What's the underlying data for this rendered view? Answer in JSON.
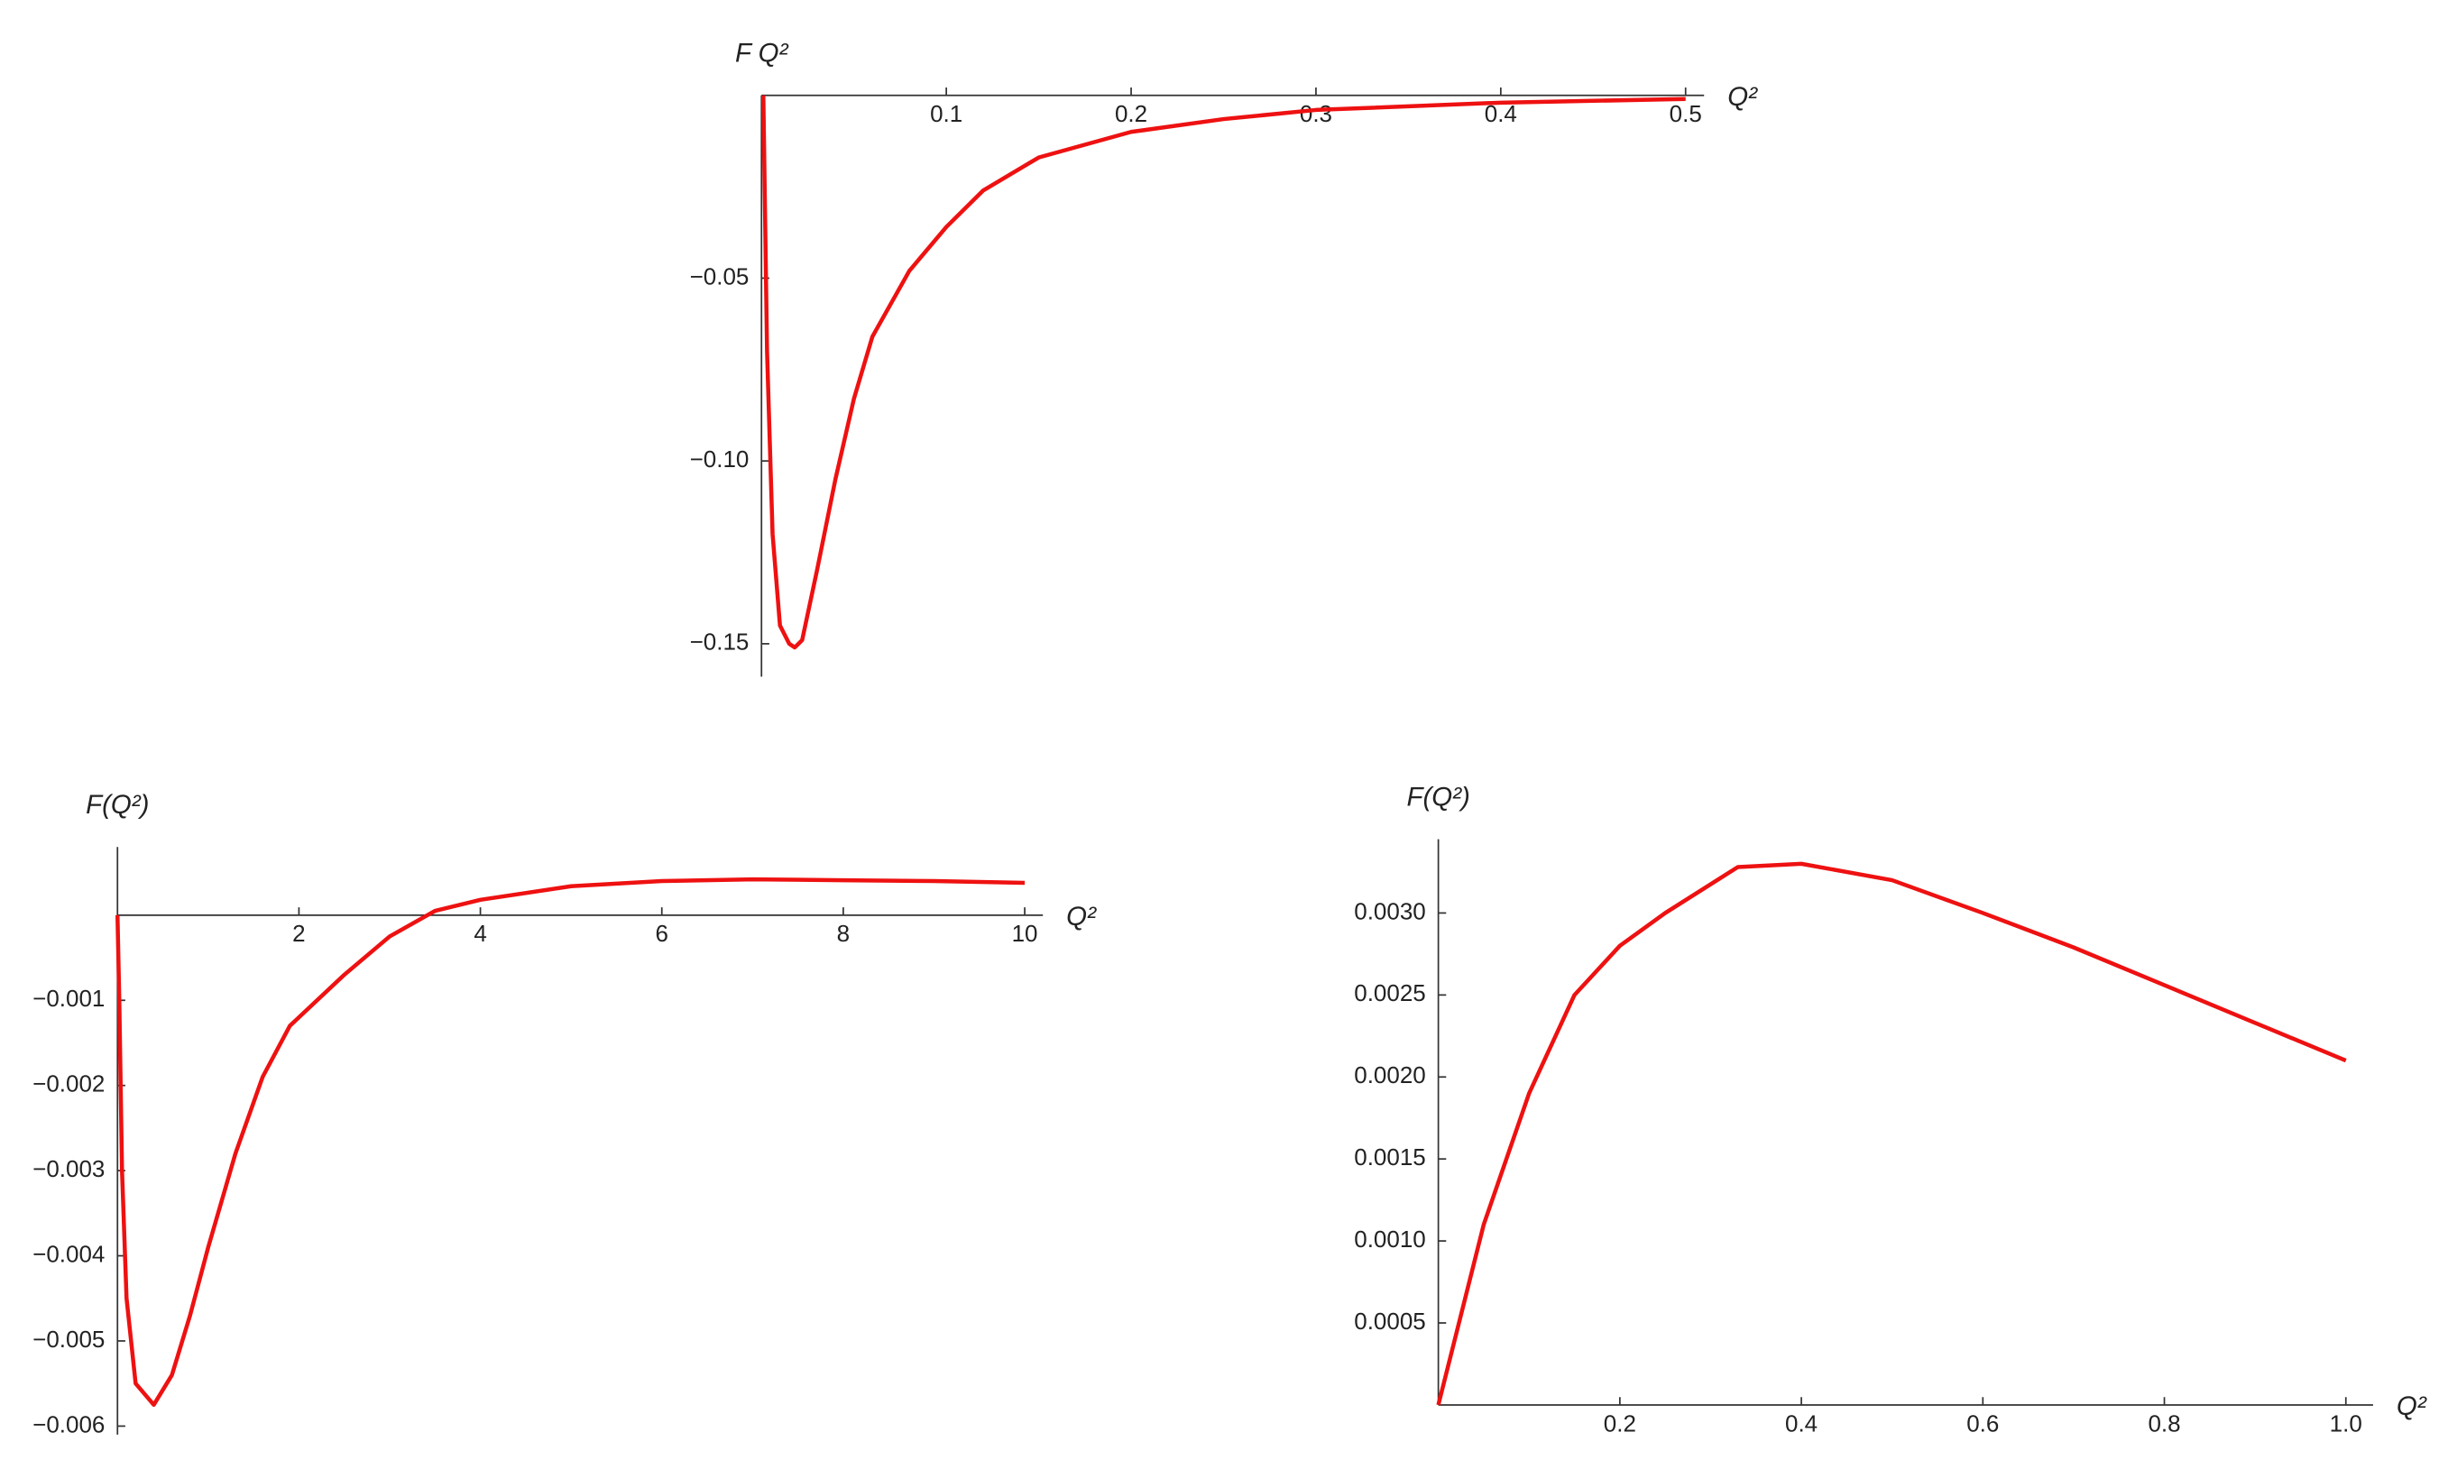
{
  "chart_data": [
    {
      "type": "line",
      "x_label": "Q²",
      "y_label": "F Q²",
      "xlim": [
        0,
        0.51
      ],
      "ylim": [
        -0.159,
        0
      ],
      "xticks": [
        0.1,
        0.2,
        0.3,
        0.4,
        0.5
      ],
      "yticks": [
        {
          "value": -0.05,
          "label": "−0.05"
        },
        {
          "value": -0.1,
          "label": "−0.10"
        },
        {
          "value": -0.15,
          "label": "−0.15"
        }
      ],
      "x": [
        0.001,
        0.003,
        0.006,
        0.01,
        0.015,
        0.018,
        0.022,
        0.03,
        0.04,
        0.05,
        0.06,
        0.08,
        0.1,
        0.12,
        0.15,
        0.2,
        0.25,
        0.3,
        0.4,
        0.5
      ],
      "series": [
        {
          "color": "#ee1111",
          "values": [
            0,
            -0.07,
            -0.12,
            -0.145,
            -0.15,
            -0.151,
            -0.149,
            -0.13,
            -0.105,
            -0.083,
            -0.066,
            -0.048,
            -0.036,
            -0.026,
            -0.017,
            -0.01,
            -0.0065,
            -0.004,
            -0.002,
            -0.001
          ]
        }
      ]
    },
    {
      "type": "line",
      "x_label": "Q²",
      "y_label": "F(Q²)",
      "xlim": [
        0,
        10.2
      ],
      "ylim": [
        -0.0061,
        0.0008
      ],
      "xticks": [
        2,
        4,
        6,
        8,
        10
      ],
      "yticks": [
        {
          "value": -0.001,
          "label": "−0.001"
        },
        {
          "value": -0.002,
          "label": "−0.002"
        },
        {
          "value": -0.003,
          "label": "−0.003"
        },
        {
          "value": -0.004,
          "label": "−0.004"
        },
        {
          "value": -0.005,
          "label": "−0.005"
        },
        {
          "value": -0.006,
          "label": "−0.006"
        }
      ],
      "x": [
        0,
        0.02,
        0.05,
        0.1,
        0.2,
        0.4,
        0.6,
        0.8,
        1.0,
        1.3,
        1.6,
        1.9,
        2.0,
        2.5,
        3.0,
        3.5,
        4,
        5,
        6,
        7,
        8,
        9,
        10
      ],
      "series": [
        {
          "color": "#ee1111",
          "values": [
            0,
            -0.001,
            -0.003,
            -0.0045,
            -0.0055,
            -0.00575,
            -0.0054,
            -0.0047,
            -0.0039,
            -0.0028,
            -0.0019,
            -0.0013,
            -0.0012,
            -0.0007,
            -0.00025,
            5e-05,
            0.00018,
            0.00034,
            0.0004,
            0.00042,
            0.00041,
            0.0004,
            0.00038
          ]
        }
      ]
    },
    {
      "type": "line",
      "x_label": "Q²",
      "y_label": "F(Q²)",
      "xlim": [
        0,
        1.03
      ],
      "ylim": [
        0,
        0.00345
      ],
      "xticks": [
        0.2,
        0.4,
        0.6,
        0.8,
        {
          "value": 1,
          "label": "1.0"
        }
      ],
      "yticks": [
        0.0005,
        {
          "value": 0.001,
          "label": "0.0010"
        },
        0.0015,
        {
          "value": 0.002,
          "label": "0.0020"
        },
        0.0025,
        {
          "value": 0.003,
          "label": "0.0030"
        }
      ],
      "x": [
        0,
        0.05,
        0.1,
        0.15,
        0.2,
        0.25,
        0.33,
        0.4,
        0.5,
        0.6,
        0.7,
        0.8,
        0.9,
        1.0
      ],
      "series": [
        {
          "color": "#ee1111",
          "values": [
            0,
            0.0011,
            0.0019,
            0.0025,
            0.0028,
            0.003,
            0.00328,
            0.0033,
            0.0032,
            0.003,
            0.00279,
            0.00256,
            0.00233,
            0.0021
          ]
        }
      ]
    }
  ]
}
